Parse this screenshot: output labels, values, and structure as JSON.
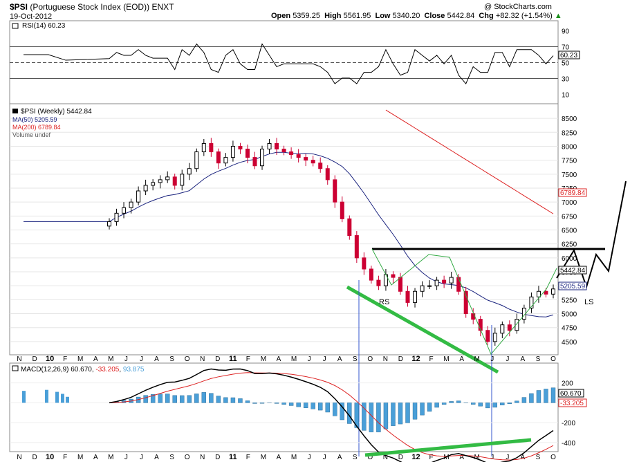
{
  "header": {
    "symbol": "$PSI",
    "name": "(Portuguese Stock Index (EOD))",
    "exchange": "ENXT",
    "date": "19-Oct-2012",
    "watermark": "@ StockCharts.com",
    "open_label": "Open",
    "open": "5359.25",
    "high_label": "High",
    "high": "5561.95",
    "low_label": "Low",
    "low": "5340.20",
    "close_label": "Close",
    "close": "5442.84",
    "chg_label": "Chg",
    "chg": "+82.32 (+1.54%)",
    "chg_arrow": "▲"
  },
  "rsi": {
    "legend": "RSI(14) 60.23",
    "value_badge": "60.23",
    "ticks": [
      "90",
      "70",
      "50",
      "30",
      "10"
    ]
  },
  "price": {
    "legend_title": "$PSI (Weekly) 5442.84",
    "legend_ma50": "MA(50) 5205.59",
    "legend_ma200": "MA(200) 6789.84",
    "legend_volume": "Volume undef",
    "badge_close": "5442.84",
    "badge_ma50": "5205.59",
    "badge_ma200": "6789.84",
    "ticks": [
      "8500",
      "8250",
      "8000",
      "7750",
      "7500",
      "7250",
      "7000",
      "6750",
      "6500",
      "6250",
      "6000",
      "5750",
      "5500",
      "5250",
      "5000",
      "4750",
      "4500"
    ]
  },
  "annotations": {
    "rs": "RS",
    "ls": "LS"
  },
  "macd": {
    "legend_prefix": "MACD(12,26,9)",
    "macd": "60.670",
    "signal": "-33.205",
    "hist": "93.875",
    "badge_macd": "60.670",
    "badge_signal": "-33.205",
    "ticks": [
      "200",
      "0",
      "-200",
      "-400"
    ]
  },
  "x_axis_labels": [
    "N",
    "D",
    "10",
    "F",
    "M",
    "A",
    "M",
    "J",
    "J",
    "A",
    "S",
    "O",
    "N",
    "D",
    "11",
    "F",
    "M",
    "A",
    "M",
    "J",
    "J",
    "A",
    "S",
    "O",
    "N",
    "D",
    "12",
    "F",
    "M",
    "A",
    "M",
    "J",
    "J",
    "A",
    "S",
    "O"
  ],
  "colors": {
    "up": "#000000",
    "down": "#cc0033",
    "ma50": "#1a237e",
    "ma200": "#dd2222",
    "macd_hist": "#4a9fd8",
    "trend_green": "#33bb44",
    "neckline": "#000000"
  },
  "chart_data": {
    "type": "candlestick",
    "title": "$PSI Portuguese Stock Index (EOD) Weekly",
    "price_ylim": [
      4300,
      8700
    ],
    "weekly_close_approx": [
      6650,
      6800,
      6900,
      7000,
      7200,
      7300,
      7350,
      7400,
      7450,
      7300,
      7500,
      7600,
      7900,
      8050,
      7900,
      7700,
      7800,
      8000,
      7950,
      7800,
      7650,
      7950,
      8050,
      7950,
      7900,
      7850,
      7800,
      7750,
      7700,
      7600,
      7400,
      7000,
      6700,
      6400,
      6000,
      5800,
      5600,
      5500,
      5700,
      5650,
      5400,
      5200,
      5400,
      5500,
      5500,
      5600,
      5550,
      5650,
      5400,
      5000,
      4900,
      4700,
      4500,
      4650,
      4800,
      4700,
      4900,
      5100,
      5300,
      5400,
      5350,
      5442.84
    ],
    "ma50_end": 5205.59,
    "ma200_end": 6789.84,
    "neckline": 5750,
    "rsi": {
      "ylim": [
        0,
        100
      ],
      "last": 60.23,
      "levels": [
        70,
        50,
        30
      ]
    },
    "macd": {
      "ylim": [
        -470,
        260
      ],
      "macd": 60.67,
      "signal": -33.205,
      "hist": 93.875
    }
  }
}
